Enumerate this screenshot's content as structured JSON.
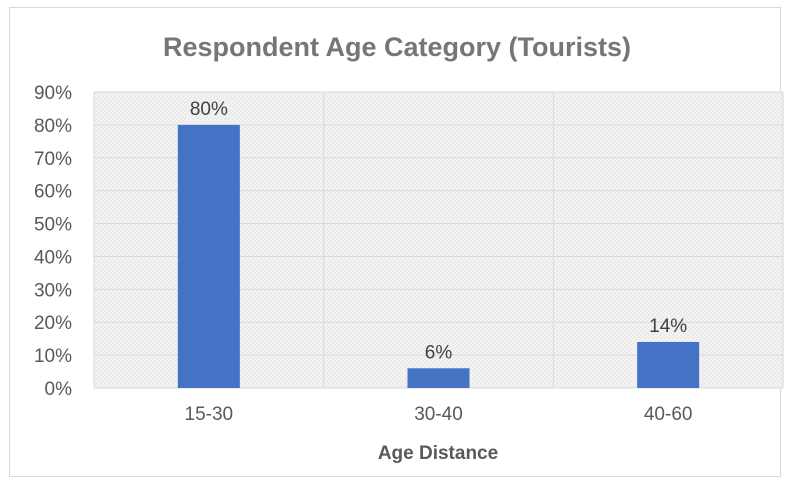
{
  "chart_data": {
    "type": "bar",
    "title": "Respondent Age Category (Tourists)",
    "xlabel": "Age Distance",
    "ylabel": "",
    "categories": [
      "15-30",
      "30-40",
      "40-60"
    ],
    "values": [
      80,
      6,
      14
    ],
    "data_labels": [
      "80%",
      "6%",
      "14%"
    ],
    "ylim": [
      0,
      90
    ],
    "y_tick_values": [
      0,
      10,
      20,
      30,
      40,
      50,
      60,
      70,
      80,
      90
    ],
    "y_ticks": [
      "0%",
      "10%",
      "20%",
      "30%",
      "40%",
      "50%",
      "60%",
      "70%",
      "80%",
      "90%"
    ],
    "grid": true,
    "legend": "none",
    "colors": {
      "bar": "#4472c4",
      "gridline": "#d9d9d9",
      "plot_area": "#f2f2f2",
      "title": "#767676",
      "text": "#595959"
    }
  }
}
